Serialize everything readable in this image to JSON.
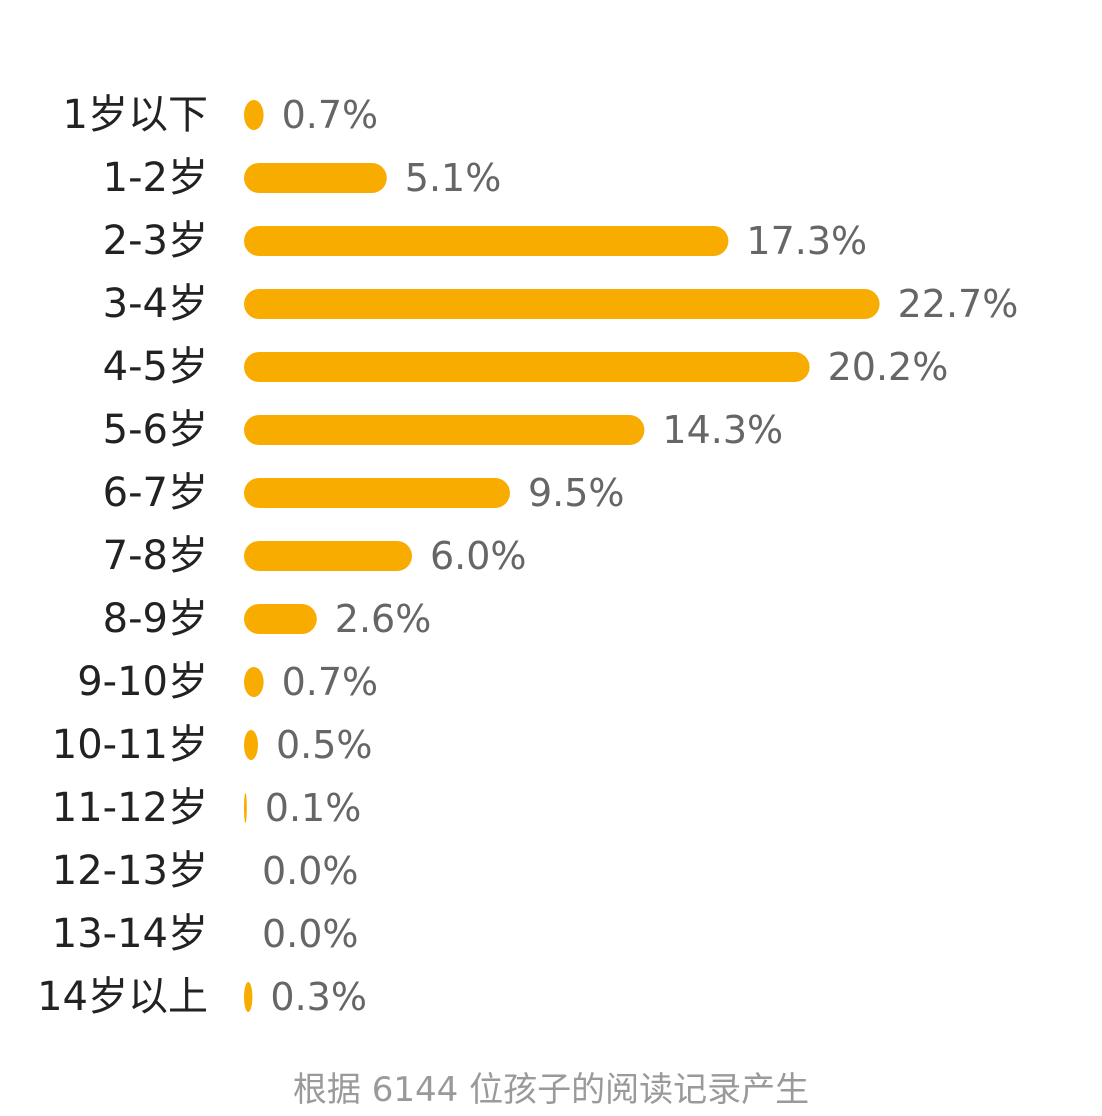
{
  "chart_data": {
    "type": "bar",
    "orientation": "horizontal",
    "categories": [
      "1岁以下",
      "1-2岁",
      "2-3岁",
      "3-4岁",
      "4-5岁",
      "5-6岁",
      "6-7岁",
      "7-8岁",
      "8-9岁",
      "9-10岁",
      "10-11岁",
      "11-12岁",
      "12-13岁",
      "13-14岁",
      "14岁以上"
    ],
    "values": [
      0.7,
      5.1,
      17.3,
      22.7,
      20.2,
      14.3,
      9.5,
      6.0,
      2.6,
      0.7,
      0.5,
      0.1,
      0.0,
      0.0,
      0.3
    ],
    "value_labels": [
      "0.7%",
      "5.1%",
      "17.3%",
      "22.7%",
      "20.2%",
      "14.3%",
      "9.5%",
      "6.0%",
      "2.6%",
      "0.7%",
      "0.5%",
      "0.1%",
      "0.0%",
      "0.0%",
      "0.3%"
    ],
    "unit": "%",
    "bar_color": "#F9AC00",
    "grid": false,
    "legend": "none"
  },
  "footnote": "根据 6144 位孩子的阅读记录产生"
}
